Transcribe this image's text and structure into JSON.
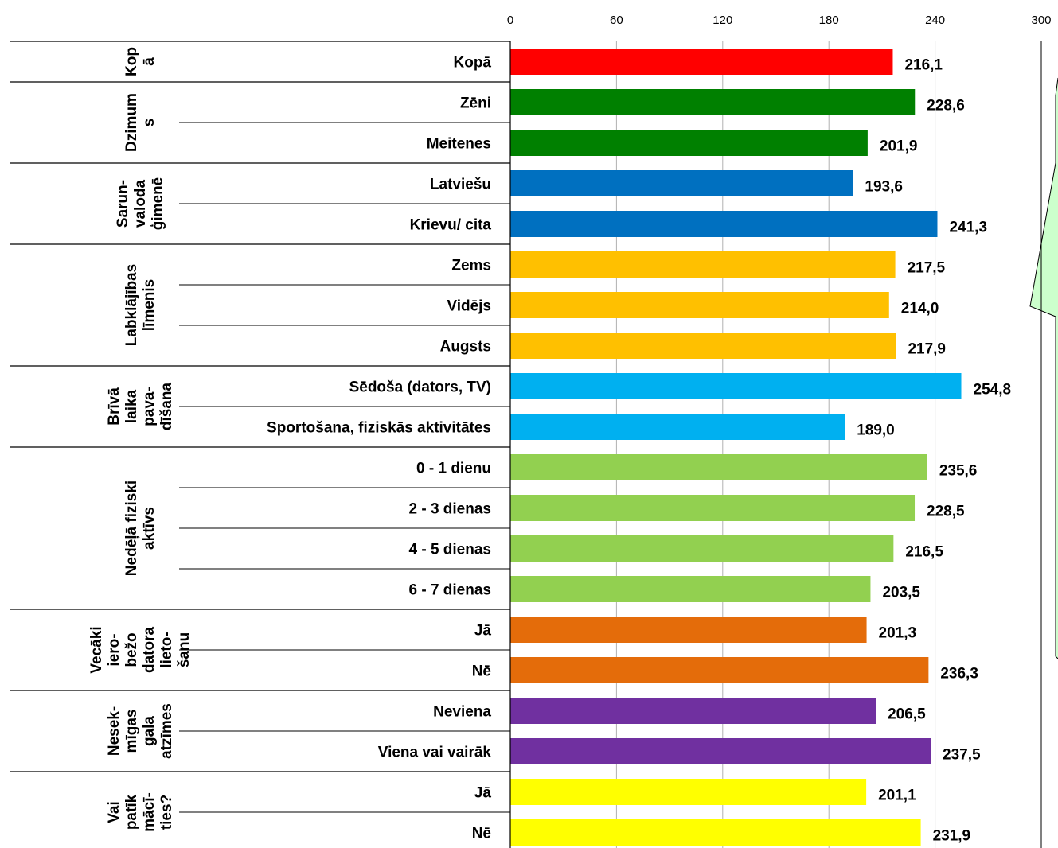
{
  "chart_data": {
    "type": "bar",
    "orientation": "horizontal",
    "xlim": [
      0,
      300
    ],
    "ticks": [
      "0",
      "60",
      "120",
      "180",
      "240",
      "300"
    ],
    "tick_values": [
      0,
      60,
      120,
      180,
      240,
      300
    ],
    "grid": true,
    "value_labels": true,
    "groups": [
      {
        "label_lines": [
          "Kop",
          "ā"
        ],
        "categories": [
          {
            "label": "Kopā",
            "value": 216.1,
            "value_label": "216,1",
            "color": "#ff0000"
          }
        ]
      },
      {
        "label_lines": [
          "Dzimum",
          "s"
        ],
        "categories": [
          {
            "label": "Zēni",
            "value": 228.6,
            "value_label": "228,6",
            "color": "#008000"
          },
          {
            "label": "Meitenes",
            "value": 201.9,
            "value_label": "201,9",
            "color": "#008000"
          }
        ]
      },
      {
        "label_lines": [
          "Sarun-",
          "valoda",
          "ģimenē"
        ],
        "categories": [
          {
            "label": "Latviešu",
            "value": 193.6,
            "value_label": "193,6",
            "color": "#0070c0"
          },
          {
            "label": "Krievu/ cita",
            "value": 241.3,
            "value_label": "241,3",
            "color": "#0070c0"
          }
        ]
      },
      {
        "label_lines": [
          "Labklājības",
          "līmenis"
        ],
        "categories": [
          {
            "label": "Zems",
            "value": 217.5,
            "value_label": "217,5",
            "color": "#ffc000"
          },
          {
            "label": "Vidējs",
            "value": 214.0,
            "value_label": "214,0",
            "color": "#ffc000"
          },
          {
            "label": "Augsts",
            "value": 217.9,
            "value_label": "217,9",
            "color": "#ffc000"
          }
        ]
      },
      {
        "label_lines": [
          "Brīvā",
          "laika",
          "pava-",
          "dīšana"
        ],
        "categories": [
          {
            "label": "Sēdoša (dators,  TV)",
            "value": 254.8,
            "value_label": "254,8",
            "color": "#00b0f0"
          },
          {
            "label": "Sportošana,  fiziskās aktivitātes",
            "value": 189.0,
            "value_label": "189,0",
            "color": "#00b0f0"
          }
        ]
      },
      {
        "label_lines": [
          "Nedēļā fiziski",
          "aktīvs"
        ],
        "categories": [
          {
            "label": "0 - 1 dienu",
            "value": 235.6,
            "value_label": "235,6",
            "color": "#92d050"
          },
          {
            "label": "2 - 3 dienas",
            "value": 228.5,
            "value_label": "228,5",
            "color": "#92d050"
          },
          {
            "label": "4 - 5 dienas",
            "value": 216.5,
            "value_label": "216,5",
            "color": "#92d050"
          },
          {
            "label": "6 - 7 dienas",
            "value": 203.5,
            "value_label": "203,5",
            "color": "#92d050"
          }
        ]
      },
      {
        "label_lines": [
          "Vecāki",
          "iero-",
          "bežo",
          "datora",
          "lieto-",
          "šanu"
        ],
        "categories": [
          {
            "label": "Jā",
            "value": 201.3,
            "value_label": "201,3",
            "color": "#e46c0a"
          },
          {
            "label": "Nē",
            "value": 236.3,
            "value_label": "236,3",
            "color": "#e46c0a"
          }
        ]
      },
      {
        "label_lines": [
          "Nesek-",
          "mīgas",
          "gala",
          "atzīmes"
        ],
        "categories": [
          {
            "label": "Neviena",
            "value": 206.5,
            "value_label": "206,5",
            "color": "#7030a0"
          },
          {
            "label": "Viena vai  vairāk",
            "value": 237.5,
            "value_label": "237,5",
            "color": "#7030a0"
          }
        ]
      },
      {
        "label_lines": [
          "Vai",
          "patīk",
          "mācī-",
          "ties?"
        ],
        "categories": [
          {
            "label": "Jā",
            "value": 201.1,
            "value_label": "201,1",
            "color": "#ffff00"
          },
          {
            "label": "Nē",
            "value": 231.9,
            "value_label": "231,9",
            "color": "#ffff00"
          }
        ]
      }
    ]
  },
  "colors": {
    "grid": "#b0b0b0",
    "axis": "#000000",
    "callout_fill": "#ccffcc",
    "callout_stroke": "#000000"
  }
}
